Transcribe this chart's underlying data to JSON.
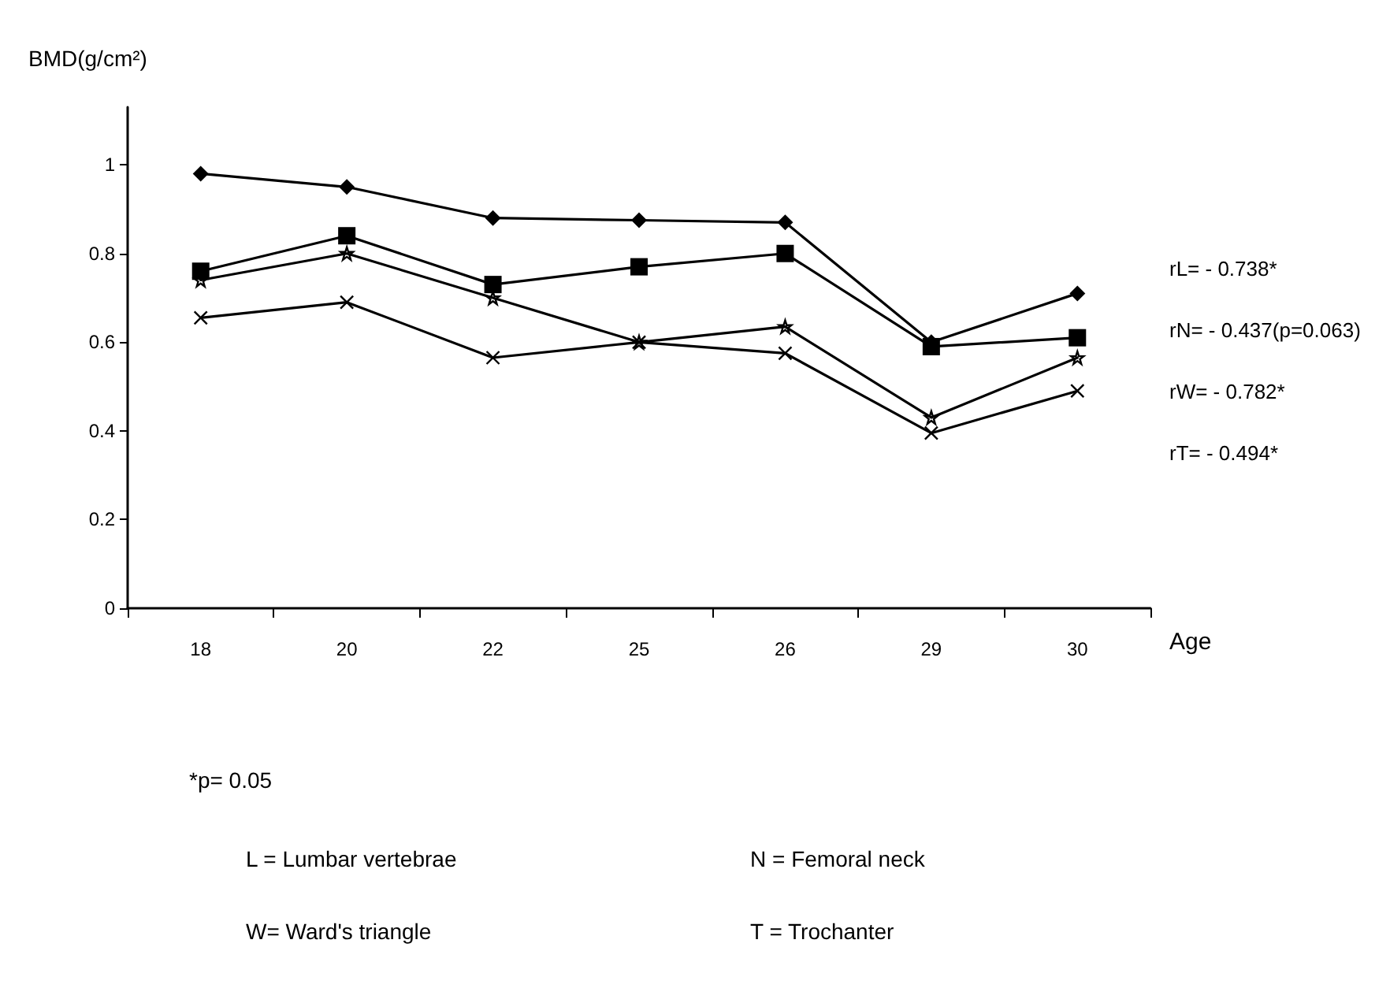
{
  "chart_data": {
    "type": "line",
    "ylabel": "BMD(g/cm²)",
    "xlabel": "Age",
    "categories": [
      "18",
      "20",
      "22",
      "25",
      "26",
      "29",
      "30"
    ],
    "series": [
      {
        "color": "#000000",
        "marker": "diamond",
        "values": [
          0.98,
          0.95,
          0.88,
          0.875,
          0.87,
          0.6,
          0.71
        ]
      },
      {
        "color": "#000000",
        "marker": "square",
        "values": [
          0.76,
          0.84,
          0.73,
          0.77,
          0.8,
          0.59,
          0.61
        ]
      },
      {
        "color": "#000000",
        "marker": "star",
        "values": [
          0.74,
          0.8,
          0.7,
          0.6,
          0.635,
          0.43,
          0.565
        ]
      },
      {
        "color": "#000000",
        "marker": "cross",
        "values": [
          0.655,
          0.69,
          0.565,
          0.6,
          0.575,
          0.395,
          0.49
        ]
      }
    ],
    "ylim": [
      0,
      1.13
    ],
    "yticks": [
      0,
      0.2,
      0.4,
      0.6,
      0.8,
      1
    ],
    "grid": false,
    "line_style": "solid",
    "annotations": [
      "rL= - 0.738*",
      "rN= - 0.437(p=0.063)",
      "rW= - 0.782*",
      "rT= - 0.494*",
      "*p= 0.05",
      "L = Lumbar vertebrae",
      "N = Femoral neck",
      "W= Ward's triangle",
      "T = Trochanter"
    ]
  }
}
